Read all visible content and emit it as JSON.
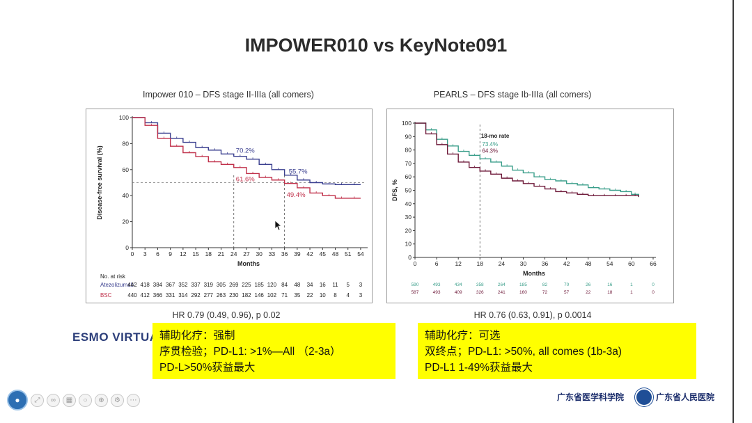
{
  "slide": {
    "title": "IMPOWER010 vs KeyNote091",
    "left_panel_title": "Impower 010 – DFS stage II-IIIa (all comers)",
    "right_panel_title": "PEARLS – DFS stage Ib-IIIa (all comers)",
    "left_hr": "HR 0.79 (0.49, 0.96), p 0.02",
    "right_hr": "HR 0.76 (0.63, 0.91), p 0.0014",
    "esmo_text": "ESMO VIRTUAL",
    "left_note": [
      "辅助化疗：强制",
      "序贯检验；PD-L1: >1%—All （2-3a）",
      "PD-L>50%获益最大"
    ],
    "right_note": [
      "辅助化疗：可选",
      "双终点；PD-L1: >50%, all comes (1b-3a)",
      "PD-L1 1-49%获益最大"
    ],
    "logo1": "广东省医学科学院",
    "logo2": "广东省人民医院"
  },
  "toolbar": {
    "icons": [
      "avatar-icon",
      "expand-icon",
      "link-icon",
      "grid-icon",
      "search-icon",
      "zoom-icon",
      "settings-icon",
      "more-icon"
    ]
  },
  "chart_data": [
    {
      "type": "line",
      "title": "Impower 010 – DFS stage II-IIIa (all comers)",
      "xlabel": "Months",
      "ylabel": "Disease-free survival (%)",
      "xlim": [
        0,
        55
      ],
      "ylim": [
        0,
        100
      ],
      "x_ticks": [
        0,
        3,
        6,
        9,
        12,
        15,
        18,
        21,
        24,
        27,
        30,
        33,
        36,
        39,
        42,
        45,
        48,
        51,
        54
      ],
      "y_ticks": [
        0,
        20,
        40,
        60,
        80,
        100
      ],
      "annotations": [
        "70.2%",
        "55.7%",
        "61.6%",
        "49.4%"
      ],
      "reference_lines": {
        "y": 50,
        "x": [
          24,
          36
        ]
      },
      "series": [
        {
          "name": "Atezolizumab",
          "color": "#3a3f8f",
          "x": [
            0,
            3,
            6,
            9,
            12,
            15,
            18,
            21,
            24,
            27,
            30,
            33,
            36,
            39,
            42,
            45,
            48,
            51,
            54
          ],
          "y": [
            100,
            96,
            88,
            84,
            81,
            77,
            75,
            72,
            70.2,
            68,
            64,
            60,
            55.7,
            52,
            50,
            49,
            48.5,
            48.5,
            48.5
          ]
        },
        {
          "name": "BSC",
          "color": "#c0304a",
          "x": [
            0,
            3,
            6,
            9,
            12,
            15,
            18,
            21,
            24,
            27,
            30,
            33,
            36,
            39,
            42,
            45,
            48,
            51,
            54
          ],
          "y": [
            100,
            94,
            84,
            78,
            73,
            70,
            66,
            64,
            61.6,
            57,
            54,
            52,
            49.4,
            46,
            42,
            40,
            38,
            38,
            38
          ]
        }
      ],
      "risk_table": {
        "label": "No. at risk",
        "rows": [
          {
            "name": "Atezolizumab",
            "values": [
              "442",
              "418",
              "384",
              "367",
              "352",
              "337",
              "319",
              "305",
              "269",
              "225",
              "185",
              "120",
              "84",
              "48",
              "34",
              "16",
              "11",
              "5",
              "3"
            ]
          },
          {
            "name": "BSC",
            "values": [
              "440",
              "412",
              "366",
              "331",
              "314",
              "292",
              "277",
              "263",
              "230",
              "182",
              "146",
              "102",
              "71",
              "35",
              "22",
              "10",
              "8",
              "4",
              "3"
            ]
          }
        ]
      }
    },
    {
      "type": "line",
      "title": "PEARLS – DFS stage Ib-IIIa (all comers)",
      "xlabel": "Months",
      "ylabel": "DFS, %",
      "xlim": [
        0,
        66
      ],
      "ylim": [
        0,
        100
      ],
      "x_ticks": [
        0,
        6,
        12,
        18,
        24,
        30,
        36,
        42,
        48,
        54,
        60,
        66
      ],
      "y_ticks": [
        0,
        10,
        20,
        30,
        40,
        50,
        60,
        70,
        80,
        90,
        100
      ],
      "annotations": [
        "18-mo rate",
        "73.4%",
        "64.3%"
      ],
      "reference_lines": {
        "x": [
          18
        ]
      },
      "series": [
        {
          "name": "",
          "color": "#3a9e8a",
          "x": [
            0,
            3,
            6,
            9,
            12,
            15,
            18,
            21,
            24,
            27,
            30,
            33,
            36,
            39,
            42,
            45,
            48,
            51,
            54,
            57,
            60,
            62
          ],
          "y": [
            100,
            95,
            88,
            83,
            79,
            76,
            73.4,
            71,
            68,
            65,
            63,
            60,
            58,
            57,
            55,
            54,
            52,
            51,
            50,
            49,
            47,
            45
          ]
        },
        {
          "name": "",
          "color": "#6e1a3a",
          "x": [
            0,
            3,
            6,
            9,
            12,
            15,
            18,
            21,
            24,
            27,
            30,
            33,
            36,
            39,
            42,
            45,
            48,
            51,
            54,
            57,
            60,
            62
          ],
          "y": [
            100,
            92,
            84,
            77,
            71,
            67,
            64.3,
            62,
            59,
            57,
            55,
            53,
            51,
            49,
            48,
            47,
            46,
            46,
            46,
            46,
            46,
            45
          ]
        }
      ],
      "risk_table": {
        "label": "",
        "rows": [
          {
            "name": "",
            "values": [
              "590",
              "493",
              "434",
              "358",
              "264",
              "185",
              "82",
              "70",
              "26",
              "16",
              "1",
              "0"
            ]
          },
          {
            "name": "",
            "values": [
              "587",
              "493",
              "409",
              "326",
              "241",
              "160",
              "72",
              "57",
              "22",
              "18",
              "1",
              "0"
            ]
          }
        ]
      }
    }
  ]
}
